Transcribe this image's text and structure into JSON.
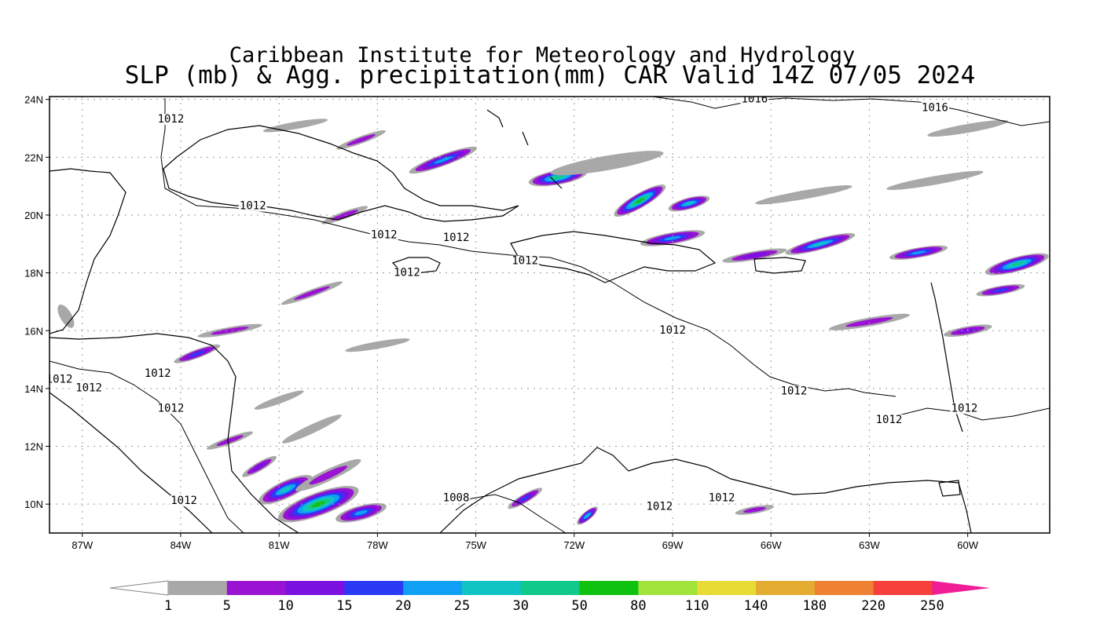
{
  "title": {
    "line1": "Caribbean Institute for Meteorology and Hydrology",
    "line2": "SLP (mb) & Agg. precipitation(mm) CAR Valid 14Z 07/05 2024"
  },
  "map": {
    "lon_range": [
      -88.0,
      -57.5
    ],
    "lat_range": [
      9.0,
      24.1
    ],
    "lon_ticks": [
      {
        "value": -87,
        "label": "87W"
      },
      {
        "value": -84,
        "label": "84W"
      },
      {
        "value": -81,
        "label": "81W"
      },
      {
        "value": -78,
        "label": "78W"
      },
      {
        "value": -75,
        "label": "75W"
      },
      {
        "value": -72,
        "label": "72W"
      },
      {
        "value": -69,
        "label": "69W"
      },
      {
        "value": -66,
        "label": "66W"
      },
      {
        "value": -63,
        "label": "63W"
      },
      {
        "value": -60,
        "label": "60W"
      }
    ],
    "lat_ticks": [
      {
        "value": 24,
        "label": "24N"
      },
      {
        "value": 22,
        "label": "22N"
      },
      {
        "value": 20,
        "label": "20N"
      },
      {
        "value": 18,
        "label": "18N"
      },
      {
        "value": 16,
        "label": "16N"
      },
      {
        "value": 14,
        "label": "14N"
      },
      {
        "value": 12,
        "label": "12N"
      },
      {
        "value": 10,
        "label": "10N"
      }
    ],
    "gridlines": true,
    "isobar_labels": [
      {
        "text": "1012",
        "lon": -84.3,
        "lat": 23.2
      },
      {
        "text": "1016",
        "lon": -66.5,
        "lat": 23.9
      },
      {
        "text": "1016",
        "lon": -61.0,
        "lat": 23.6
      },
      {
        "text": "1012",
        "lon": -81.8,
        "lat": 20.2
      },
      {
        "text": "1012",
        "lon": -77.8,
        "lat": 19.2
      },
      {
        "text": "1012",
        "lon": -75.6,
        "lat": 19.1
      },
      {
        "text": "1012",
        "lon": -73.5,
        "lat": 18.3
      },
      {
        "text": "1012",
        "lon": -77.1,
        "lat": 17.9
      },
      {
        "text": "1012",
        "lon": -69.0,
        "lat": 15.9
      },
      {
        "text": "1012",
        "lon": -87.7,
        "lat": 14.2
      },
      {
        "text": "1012",
        "lon": -84.7,
        "lat": 14.4
      },
      {
        "text": "1012",
        "lon": -86.8,
        "lat": 13.9
      },
      {
        "text": "1012",
        "lon": -84.3,
        "lat": 13.2
      },
      {
        "text": "1012",
        "lon": -65.3,
        "lat": 13.8
      },
      {
        "text": "1012",
        "lon": -62.4,
        "lat": 12.8
      },
      {
        "text": "1012",
        "lon": -60.1,
        "lat": 13.2
      },
      {
        "text": "1012",
        "lon": -83.9,
        "lat": 10.0
      },
      {
        "text": "1008",
        "lon": -75.6,
        "lat": 10.1
      },
      {
        "text": "1012",
        "lon": -67.5,
        "lat": 10.1
      },
      {
        "text": "1012",
        "lon": -69.4,
        "lat": 9.8
      }
    ],
    "precip_streaks": [
      {
        "lon": -79.8,
        "lat": 10.0,
        "len": 2.6,
        "width": 0.8,
        "angle": -20,
        "level": 7
      },
      {
        "lon": -80.8,
        "lat": 10.5,
        "len": 1.8,
        "width": 0.6,
        "angle": -25,
        "level": 5
      },
      {
        "lon": -78.5,
        "lat": 9.7,
        "len": 1.6,
        "width": 0.5,
        "angle": -15,
        "level": 4
      },
      {
        "lon": -81.6,
        "lat": 11.3,
        "len": 1.2,
        "width": 0.3,
        "angle": -30,
        "level": 2
      },
      {
        "lon": -79.5,
        "lat": 11.0,
        "len": 2.2,
        "width": 0.4,
        "angle": -25,
        "level": 1
      },
      {
        "lon": -82.5,
        "lat": 12.2,
        "len": 1.5,
        "width": 0.25,
        "angle": -20,
        "level": 1
      },
      {
        "lon": -80.0,
        "lat": 12.6,
        "len": 2.0,
        "width": 0.3,
        "angle": -25,
        "level": 0
      },
      {
        "lon": -81.0,
        "lat": 13.6,
        "len": 1.6,
        "width": 0.25,
        "angle": -20,
        "level": 0
      },
      {
        "lon": -72.5,
        "lat": 21.3,
        "len": 1.8,
        "width": 0.5,
        "angle": -10,
        "level": 6
      },
      {
        "lon": -70.0,
        "lat": 20.5,
        "len": 1.8,
        "width": 0.5,
        "angle": -30,
        "level": 7
      },
      {
        "lon": -68.5,
        "lat": 20.4,
        "len": 1.3,
        "width": 0.4,
        "angle": -15,
        "level": 5
      },
      {
        "lon": -76.0,
        "lat": 21.9,
        "len": 2.2,
        "width": 0.4,
        "angle": -20,
        "level": 4
      },
      {
        "lon": -71.0,
        "lat": 21.8,
        "len": 3.5,
        "width": 0.5,
        "angle": -10,
        "level": 0
      },
      {
        "lon": -69.0,
        "lat": 19.2,
        "len": 2.0,
        "width": 0.4,
        "angle": -10,
        "level": 4
      },
      {
        "lon": -64.5,
        "lat": 19.0,
        "len": 2.2,
        "width": 0.4,
        "angle": -15,
        "level": 5
      },
      {
        "lon": -61.5,
        "lat": 18.7,
        "len": 1.8,
        "width": 0.35,
        "angle": -10,
        "level": 4
      },
      {
        "lon": -58.5,
        "lat": 18.3,
        "len": 2.0,
        "width": 0.5,
        "angle": -15,
        "level": 6
      },
      {
        "lon": -59.0,
        "lat": 17.4,
        "len": 1.5,
        "width": 0.3,
        "angle": -10,
        "level": 3
      },
      {
        "lon": -63.0,
        "lat": 16.3,
        "len": 2.5,
        "width": 0.3,
        "angle": -10,
        "level": 1
      },
      {
        "lon": -60.0,
        "lat": 16.0,
        "len": 1.5,
        "width": 0.3,
        "angle": -10,
        "level": 2
      },
      {
        "lon": -66.5,
        "lat": 18.6,
        "len": 2.0,
        "width": 0.3,
        "angle": -10,
        "level": 2
      },
      {
        "lon": -65.0,
        "lat": 20.7,
        "len": 3.0,
        "width": 0.3,
        "angle": -10,
        "level": 0
      },
      {
        "lon": -61.0,
        "lat": 21.2,
        "len": 3.0,
        "width": 0.3,
        "angle": -10,
        "level": 0
      },
      {
        "lon": -60.0,
        "lat": 23.0,
        "len": 2.5,
        "width": 0.3,
        "angle": -10,
        "level": 0
      },
      {
        "lon": -78.5,
        "lat": 22.6,
        "len": 1.6,
        "width": 0.25,
        "angle": -20,
        "level": 1
      },
      {
        "lon": -80.5,
        "lat": 23.1,
        "len": 2.0,
        "width": 0.25,
        "angle": -10,
        "level": 0
      },
      {
        "lon": -79.0,
        "lat": 20.0,
        "len": 1.5,
        "width": 0.25,
        "angle": -20,
        "level": 1
      },
      {
        "lon": -83.5,
        "lat": 15.2,
        "len": 1.5,
        "width": 0.3,
        "angle": -20,
        "level": 3
      },
      {
        "lon": -82.5,
        "lat": 16.0,
        "len": 2.0,
        "width": 0.25,
        "angle": -10,
        "level": 1
      },
      {
        "lon": -80.0,
        "lat": 17.3,
        "len": 2.0,
        "width": 0.25,
        "angle": -20,
        "level": 1
      },
      {
        "lon": -78.0,
        "lat": 15.5,
        "len": 2.0,
        "width": 0.25,
        "angle": -10,
        "level": 0
      },
      {
        "lon": -87.5,
        "lat": 16.5,
        "len": 0.8,
        "width": 0.4,
        "angle": 60,
        "level": 0
      },
      {
        "lon": -73.5,
        "lat": 10.2,
        "len": 1.2,
        "width": 0.3,
        "angle": -30,
        "level": 3
      },
      {
        "lon": -71.6,
        "lat": 9.6,
        "len": 0.8,
        "width": 0.3,
        "angle": -40,
        "level": 5
      },
      {
        "lon": -66.5,
        "lat": 9.8,
        "len": 1.2,
        "width": 0.25,
        "angle": -10,
        "level": 1
      }
    ],
    "legend": {
      "levels": [
        {
          "label": "1",
          "color": "#a8a8a8"
        },
        {
          "label": "5",
          "color": "#9a13d2"
        },
        {
          "label": "10",
          "color": "#7a11e0"
        },
        {
          "label": "15",
          "color": "#2a3af5"
        },
        {
          "label": "20",
          "color": "#0fa0f5"
        },
        {
          "label": "25",
          "color": "#10c4c4"
        },
        {
          "label": "30",
          "color": "#10c98a"
        },
        {
          "label": "50",
          "color": "#10c210"
        },
        {
          "label": "80",
          "color": "#a0e33a"
        },
        {
          "label": "110",
          "color": "#e6dc35"
        },
        {
          "label": "140",
          "color": "#e4ad32"
        },
        {
          "label": "180",
          "color": "#ee8232"
        },
        {
          "label": "220",
          "color": "#f5403c"
        },
        {
          "label": "250",
          "color": "#f01e96"
        }
      ]
    }
  }
}
